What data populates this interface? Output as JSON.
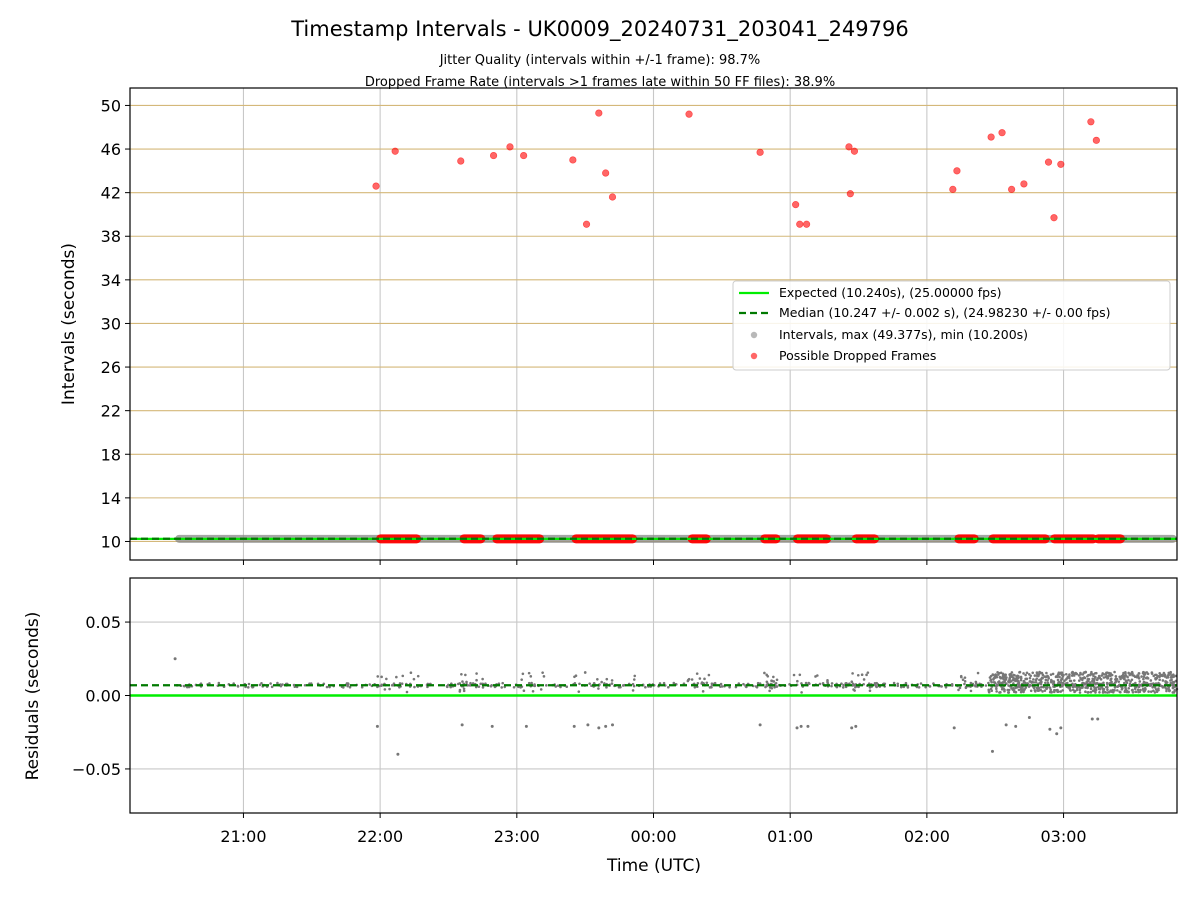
{
  "chart_data": [
    {
      "type": "scatter",
      "title": "Timestamp Intervals - UK0009_20240731_203041_249796",
      "subtitle_lines": [
        "Jitter Quality (intervals within +/-1 frame): 98.7%",
        "Dropped Frame Rate (intervals >1 frames late within 50 FF files): 38.9%"
      ],
      "xlabel": "",
      "ylabel": "Intervals (seconds)",
      "xlim_hours": [
        20.17,
        27.83
      ],
      "ylim": [
        8.3,
        51.6
      ],
      "yticks": [
        10,
        14,
        18,
        22,
        26,
        30,
        34,
        38,
        42,
        46,
        50
      ],
      "grid": "on (horizontal y-gridlines in tan, vertical x-gridlines in gray)",
      "legend_position": "center-right",
      "legend": [
        "Expected (10.240s), (25.00000 fps)",
        "Median (10.247 +/- 0.002 s), (24.98230 +/- 0.00 fps)",
        "Intervals, max (49.377s), min (10.200s)",
        "Possible Dropped Frames"
      ],
      "colors": {
        "expected": "#00ee00",
        "median": "#007a00",
        "intervals": "#888888",
        "dropped": "#ff0000",
        "hgrid": "#d4b87a",
        "vgrid": "#c8c8c8"
      },
      "expected_interval": 10.24,
      "median_interval": 10.247,
      "interval_baseline_range_hours": [
        20.5,
        27.83
      ],
      "dropped_clusters_hours": [
        [
          21.97,
          22.3
        ],
        [
          22.58,
          22.77
        ],
        [
          22.82,
          23.2
        ],
        [
          23.4,
          23.88
        ],
        [
          24.25,
          24.42
        ],
        [
          24.78,
          24.93
        ],
        [
          25.02,
          25.3
        ],
        [
          25.45,
          25.65
        ],
        [
          26.2,
          26.38
        ],
        [
          26.45,
          26.9
        ],
        [
          26.9,
          27.25
        ],
        [
          27.22,
          27.45
        ]
      ],
      "dropped_outliers": [
        {
          "t": 21.97,
          "y": 42.6
        },
        {
          "t": 22.11,
          "y": 45.8
        },
        {
          "t": 22.59,
          "y": 44.9
        },
        {
          "t": 22.83,
          "y": 45.4
        },
        {
          "t": 22.95,
          "y": 46.2
        },
        {
          "t": 23.05,
          "y": 45.4
        },
        {
          "t": 23.41,
          "y": 45.0
        },
        {
          "t": 23.51,
          "y": 39.1
        },
        {
          "t": 23.6,
          "y": 49.3
        },
        {
          "t": 23.65,
          "y": 43.8
        },
        {
          "t": 23.7,
          "y": 41.6
        },
        {
          "t": 24.26,
          "y": 49.2
        },
        {
          "t": 24.78,
          "y": 45.7
        },
        {
          "t": 25.04,
          "y": 40.9
        },
        {
          "t": 25.07,
          "y": 39.1
        },
        {
          "t": 25.12,
          "y": 39.1
        },
        {
          "t": 25.43,
          "y": 46.2
        },
        {
          "t": 25.44,
          "y": 41.9
        },
        {
          "t": 25.47,
          "y": 45.8
        },
        {
          "t": 26.19,
          "y": 42.3
        },
        {
          "t": 26.22,
          "y": 44.0
        },
        {
          "t": 26.47,
          "y": 47.1
        },
        {
          "t": 26.55,
          "y": 47.5
        },
        {
          "t": 26.62,
          "y": 42.3
        },
        {
          "t": 26.71,
          "y": 42.8
        },
        {
          "t": 26.89,
          "y": 44.8
        },
        {
          "t": 26.93,
          "y": 39.7
        },
        {
          "t": 26.98,
          "y": 44.6
        },
        {
          "t": 27.2,
          "y": 48.5
        },
        {
          "t": 27.24,
          "y": 46.8
        }
      ]
    },
    {
      "type": "scatter",
      "xlabel": "Time (UTC)",
      "ylabel": "Residuals (seconds)",
      "xlim_hours": [
        20.17,
        27.83
      ],
      "ylim": [
        -0.08,
        0.08
      ],
      "yticks": [
        0.05,
        0.0,
        -0.05
      ],
      "ytick_labels": [
        "0.05",
        "0.00",
        "−0.05"
      ],
      "xticks_hours": [
        21,
        22,
        23,
        24,
        25,
        26,
        27
      ],
      "xtick_labels": [
        "21:00",
        "22:00",
        "23:00",
        "00:00",
        "01:00",
        "02:00",
        "03:00"
      ],
      "expected_residual": 0.0,
      "median_residual": 0.007,
      "residual_outliers": [
        {
          "t": 20.5,
          "y": 0.025
        },
        {
          "t": 21.98,
          "y": -0.021
        },
        {
          "t": 22.13,
          "y": -0.04
        },
        {
          "t": 22.6,
          "y": -0.02
        },
        {
          "t": 22.82,
          "y": -0.021
        },
        {
          "t": 23.07,
          "y": -0.021
        },
        {
          "t": 23.42,
          "y": -0.021
        },
        {
          "t": 23.52,
          "y": -0.02
        },
        {
          "t": 23.6,
          "y": -0.022
        },
        {
          "t": 23.65,
          "y": -0.021
        },
        {
          "t": 23.7,
          "y": -0.02
        },
        {
          "t": 24.78,
          "y": -0.02
        },
        {
          "t": 25.05,
          "y": -0.022
        },
        {
          "t": 25.08,
          "y": -0.021
        },
        {
          "t": 25.13,
          "y": -0.021
        },
        {
          "t": 25.45,
          "y": -0.022
        },
        {
          "t": 25.48,
          "y": -0.021
        },
        {
          "t": 26.2,
          "y": -0.022
        },
        {
          "t": 26.48,
          "y": -0.038
        },
        {
          "t": 26.58,
          "y": -0.02
        },
        {
          "t": 26.65,
          "y": -0.021
        },
        {
          "t": 26.75,
          "y": -0.015
        },
        {
          "t": 26.9,
          "y": -0.023
        },
        {
          "t": 26.95,
          "y": -0.026
        },
        {
          "t": 26.98,
          "y": -0.022
        },
        {
          "t": 27.21,
          "y": -0.016
        },
        {
          "t": 27.25,
          "y": -0.016
        }
      ],
      "dense_residual_band_hours": [
        26.45,
        27.83
      ],
      "dense_residual_range": [
        0.002,
        0.016
      ]
    }
  ]
}
